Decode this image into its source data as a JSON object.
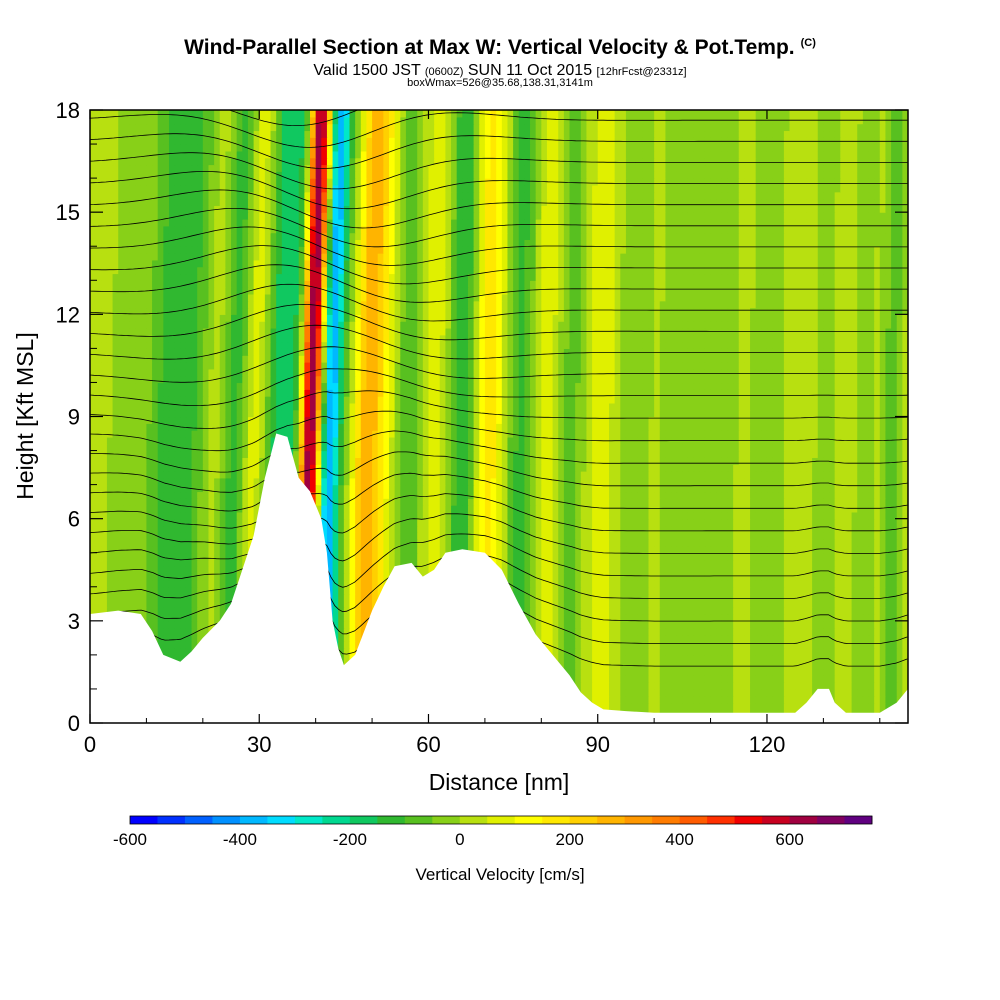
{
  "header": {
    "title": "Wind-Parallel Section at Max W: Vertical Velocity & Pot.Temp.",
    "copyright": "(C)",
    "valid_prefix": "Valid 1500 JST",
    "valid_utc": "(0600Z)",
    "valid_date": "SUN 11 Oct 2015",
    "forecast": "[12hrFcst@2331z]",
    "box_info": "boxWmax=526@35.68,138.31,3141m"
  },
  "chart_data": {
    "type": "heatmap",
    "xlabel": "Distance [nm]",
    "ylabel": "Height [Kft MSL]",
    "xlim": [
      0,
      145
    ],
    "ylim": [
      0,
      18
    ],
    "xticks": [
      0,
      30,
      60,
      90,
      120
    ],
    "yticks": [
      0,
      3,
      6,
      9,
      12,
      15,
      18
    ],
    "terrain_kft": [
      [
        0,
        3.2
      ],
      [
        5,
        3.3
      ],
      [
        9,
        3.2
      ],
      [
        11,
        2.7
      ],
      [
        13,
        2.0
      ],
      [
        16,
        1.8
      ],
      [
        18,
        2.1
      ],
      [
        20,
        2.5
      ],
      [
        23,
        3.0
      ],
      [
        25,
        3.5
      ],
      [
        27,
        4.5
      ],
      [
        29,
        5.5
      ],
      [
        31,
        7.2
      ],
      [
        33,
        8.5
      ],
      [
        35,
        8.4
      ],
      [
        37,
        7.2
      ],
      [
        39,
        6.8
      ],
      [
        41,
        6.0
      ],
      [
        42,
        5.0
      ],
      [
        43,
        3.0
      ],
      [
        44,
        2.2
      ],
      [
        45,
        1.7
      ],
      [
        47,
        2.0
      ],
      [
        50,
        3.3
      ],
      [
        52,
        4.0
      ],
      [
        54,
        4.6
      ],
      [
        57,
        4.7
      ],
      [
        59,
        4.3
      ],
      [
        61,
        4.5
      ],
      [
        63,
        5.0
      ],
      [
        66,
        5.1
      ],
      [
        70,
        5.0
      ],
      [
        73,
        4.5
      ],
      [
        76,
        3.5
      ],
      [
        79,
        2.6
      ],
      [
        82,
        2.0
      ],
      [
        85,
        1.4
      ],
      [
        87,
        0.9
      ],
      [
        89,
        0.6
      ],
      [
        91,
        0.4
      ],
      [
        95,
        0.35
      ],
      [
        100,
        0.3
      ],
      [
        110,
        0.3
      ],
      [
        120,
        0.3
      ],
      [
        125,
        0.3
      ],
      [
        127,
        0.6
      ],
      [
        129,
        1.0
      ],
      [
        131,
        1.0
      ],
      [
        132,
        0.6
      ],
      [
        134,
        0.3
      ],
      [
        140,
        0.3
      ],
      [
        143,
        0.6
      ],
      [
        145,
        1.0
      ]
    ],
    "vertical_velocity_bands": [
      {
        "x": 5,
        "w": 3.0,
        "v": -70
      },
      {
        "x": 12,
        "w": 3.5,
        "v": -120
      },
      {
        "x": 17,
        "w": 4.0,
        "v": -150
      },
      {
        "x": 22,
        "w": 2.5,
        "v": 60
      },
      {
        "x": 25,
        "w": 3.0,
        "v": -180
      },
      {
        "x": 28,
        "w": 2.0,
        "v": 80
      },
      {
        "x": 33,
        "w": 2.5,
        "v": -230
      },
      {
        "x": 36,
        "w": 1.5,
        "v": -150
      },
      {
        "x": 38.5,
        "w": 1.8,
        "v": 620
      },
      {
        "x": 42,
        "w": 1.8,
        "v": -420
      },
      {
        "x": 45.5,
        "w": 2.5,
        "v": -150
      },
      {
        "x": 48,
        "w": 3.0,
        "v": 270
      },
      {
        "x": 52,
        "w": 3.0,
        "v": 60
      },
      {
        "x": 56,
        "w": 3.0,
        "v": -150
      },
      {
        "x": 61,
        "w": 3.5,
        "v": 50
      },
      {
        "x": 66,
        "w": 3.0,
        "v": -220
      },
      {
        "x": 70,
        "w": 3.0,
        "v": 160
      },
      {
        "x": 76,
        "w": 3.0,
        "v": -160
      },
      {
        "x": 81,
        "w": 2.5,
        "v": 60
      },
      {
        "x": 85,
        "w": 3.0,
        "v": -120
      },
      {
        "x": 90,
        "w": 3.0,
        "v": 40
      },
      {
        "x": 96,
        "w": 3.0,
        "v": -90
      },
      {
        "x": 104,
        "w": 4.0,
        "v": -70
      },
      {
        "x": 112,
        "w": 4.0,
        "v": -60
      },
      {
        "x": 120,
        "w": 3.0,
        "v": -90
      },
      {
        "x": 130,
        "w": 2.0,
        "v": -90
      },
      {
        "x": 137,
        "w": 2.0,
        "v": -80
      },
      {
        "x": 142,
        "w": 2.0,
        "v": -120
      }
    ],
    "colorbar": {
      "label": "Vertical Velocity [cm/s]",
      "min": -600,
      "max": 750,
      "step": 50,
      "tick_values": [
        -600,
        -400,
        -200,
        0,
        200,
        400,
        600
      ],
      "tick_labels": [
        "-600",
        "-400",
        "-200",
        "0",
        "200",
        "400",
        "600"
      ],
      "colors": [
        "#0000ff",
        "#0030ff",
        "#0060ff",
        "#0090ff",
        "#00b8ff",
        "#00dcff",
        "#00e8c8",
        "#00d890",
        "#10c860",
        "#30b830",
        "#58c020",
        "#88d018",
        "#b8e010",
        "#e0f000",
        "#ffff00",
        "#ffe800",
        "#ffd000",
        "#ffb400",
        "#ff9800",
        "#ff7c00",
        "#ff5c00",
        "#ff3000",
        "#f00000",
        "#c80020",
        "#a00040",
        "#800060",
        "#600080"
      ]
    }
  }
}
